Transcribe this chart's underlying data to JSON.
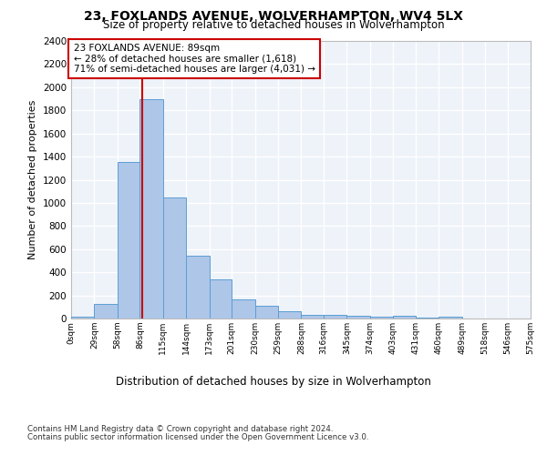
{
  "title_line1": "23, FOXLANDS AVENUE, WOLVERHAMPTON, WV4 5LX",
  "title_line2": "Size of property relative to detached houses in Wolverhampton",
  "xlabel": "Distribution of detached houses by size in Wolverhampton",
  "ylabel": "Number of detached properties",
  "footnote1": "Contains HM Land Registry data © Crown copyright and database right 2024.",
  "footnote2": "Contains public sector information licensed under the Open Government Licence v3.0.",
  "annotation_line1": "23 FOXLANDS AVENUE: 89sqm",
  "annotation_line2": "← 28% of detached houses are smaller (1,618)",
  "annotation_line3": "71% of semi-detached houses are larger (4,031) →",
  "bar_values": [
    15,
    125,
    1350,
    1900,
    1045,
    540,
    335,
    165,
    110,
    65,
    35,
    30,
    25,
    15,
    20,
    5,
    15
  ],
  "bin_edges": [
    0,
    29,
    58,
    86,
    115,
    144,
    173,
    201,
    230,
    259,
    288,
    316,
    345,
    374,
    403,
    431,
    460,
    489
  ],
  "tick_labels": [
    "0sqm",
    "29sqm",
    "58sqm",
    "86sqm",
    "115sqm",
    "144sqm",
    "173sqm",
    "201sqm",
    "230sqm",
    "259sqm",
    "288sqm",
    "316sqm",
    "345sqm",
    "374sqm",
    "403sqm",
    "431sqm",
    "460sqm",
    "489sqm",
    "518sqm",
    "546sqm",
    "575sqm"
  ],
  "property_size": 89,
  "bar_color": "#aec6e8",
  "bar_edge_color": "#5a9fd4",
  "vline_color": "#cc0000",
  "annotation_box_color": "#cc0000",
  "background_color": "#eef2f9",
  "grid_color": "#ffffff",
  "ylim": [
    0,
    2400
  ],
  "yticks": [
    0,
    200,
    400,
    600,
    800,
    1000,
    1200,
    1400,
    1600,
    1800,
    2000,
    2200,
    2400
  ],
  "xlim": [
    0,
    575
  ]
}
